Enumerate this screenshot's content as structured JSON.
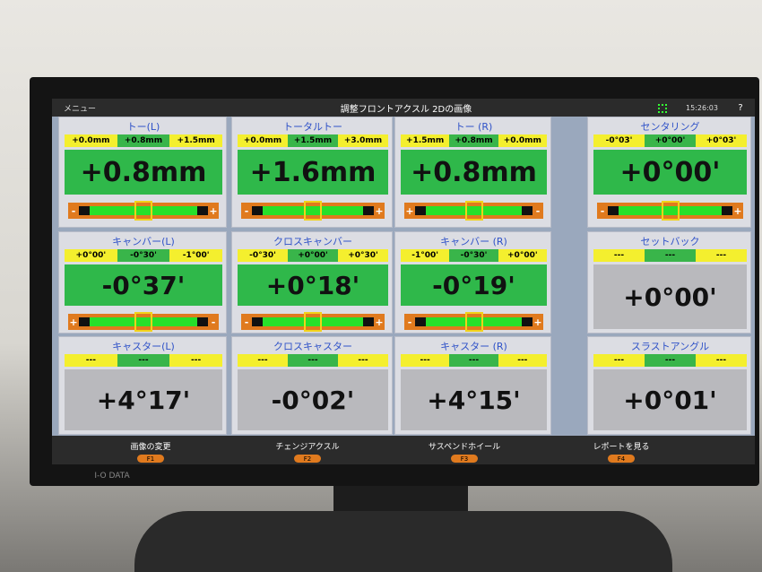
{
  "header": {
    "menu": "メニュー",
    "title": "調整フロントアクスル 2Dの画像",
    "time": "15:26:03",
    "help": "?"
  },
  "panels": [
    {
      "title": "トー(L)",
      "range": [
        "+0.0mm",
        "+0.8mm",
        "+1.5mm"
      ],
      "value": "+0.8mm",
      "gauge": [
        "-",
        "+"
      ]
    },
    {
      "title": "トータルトー",
      "range": [
        "+0.0mm",
        "+1.5mm",
        "+3.0mm"
      ],
      "value": "+1.6mm",
      "gauge": [
        "-",
        "+"
      ]
    },
    {
      "title": "トー (R)",
      "range": [
        "+1.5mm",
        "+0.8mm",
        "+0.0mm"
      ],
      "value": "+0.8mm",
      "gauge": [
        "+",
        "-"
      ]
    },
    {
      "title": "センタリング",
      "range": [
        "-0°03'",
        "+0°00'",
        "+0°03'"
      ],
      "value": "+0°00'",
      "gauge": [
        "-",
        "+"
      ]
    },
    {
      "title": "キャンバー(L)",
      "range": [
        "+0°00'",
        "-0°30'",
        "-1°00'"
      ],
      "value": "-0°37'",
      "gauge": [
        "+",
        "-"
      ]
    },
    {
      "title": "クロスキャンバー",
      "range": [
        "-0°30'",
        "+0°00'",
        "+0°30'"
      ],
      "value": "+0°18'",
      "gauge": [
        "-",
        "+"
      ]
    },
    {
      "title": "キャンバー (R)",
      "range": [
        "-1°00'",
        "-0°30'",
        "+0°00'"
      ],
      "value": "-0°19'",
      "gauge": [
        "-",
        "+"
      ]
    },
    {
      "title": "セットバック",
      "range": [
        "---",
        "---",
        "---"
      ],
      "value": "+0°00'"
    },
    {
      "title": "キャスター(L)",
      "range": [
        "---",
        "---",
        "---"
      ],
      "value": "+4°17'"
    },
    {
      "title": "クロスキャスター",
      "range": [
        "---",
        "---",
        "---"
      ],
      "value": "-0°02'"
    },
    {
      "title": "キャスター (R)",
      "range": [
        "---",
        "---",
        "---"
      ],
      "value": "+4°15'"
    },
    {
      "title": "スラストアングル",
      "range": [
        "---",
        "---",
        "---"
      ],
      "value": "+0°01'"
    }
  ],
  "footer": [
    {
      "label": "画像の変更",
      "key": "F1"
    },
    {
      "label": "チェンジアクスル",
      "key": "F2"
    },
    {
      "label": "サスペンドホイール",
      "key": "F3"
    },
    {
      "label": "レポートを見る",
      "key": "F4"
    }
  ],
  "brand": "I-O DATA"
}
